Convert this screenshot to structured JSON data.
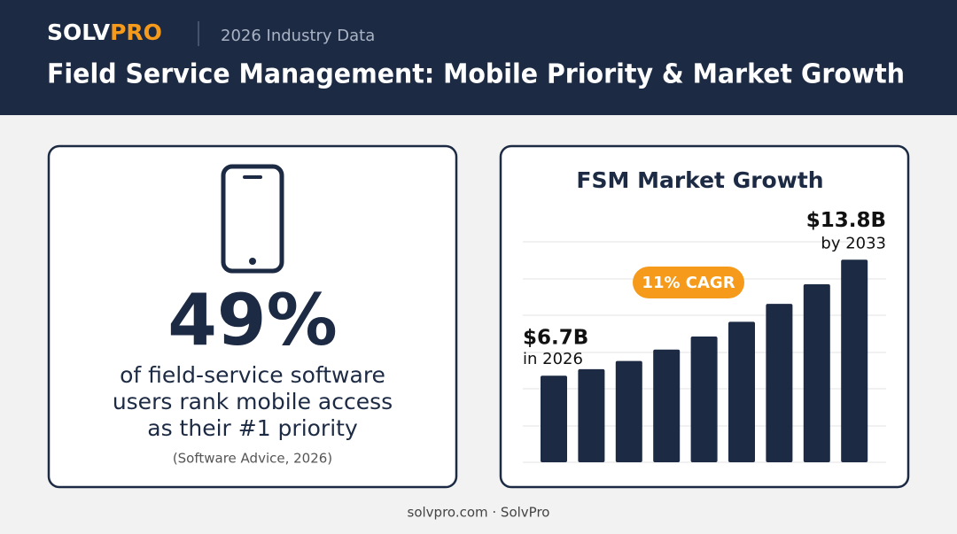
{
  "header": {
    "brand": {
      "first": "SOLV",
      "second": "PRO"
    },
    "tagline": "2026 Industry Data",
    "title": "Field Service Management: Mobile Priority & Market Growth"
  },
  "stat": {
    "figure": "49%",
    "lines": [
      "of field-service software",
      "users rank mobile access",
      "as their #1 priority"
    ],
    "source": "(Software Advice, 2026)"
  },
  "chart_data": {
    "type": "bar",
    "title": "FSM Market Growth",
    "values": [
      6.7,
      7.1,
      7.6,
      8.3,
      9.1,
      10.0,
      11.1,
      12.3,
      13.8
    ],
    "value_labels": [
      "$6.7B",
      null,
      null,
      null,
      null,
      null,
      null,
      null,
      "$13.8B"
    ],
    "annotations": {
      "start": "in 2026",
      "end": "by 2033",
      "growth": "11% CAGR"
    },
    "color": "#1c2a44",
    "ylim": [
      1.4,
      14.9
    ]
  },
  "footer": "solvpro.com · SolvPro"
}
